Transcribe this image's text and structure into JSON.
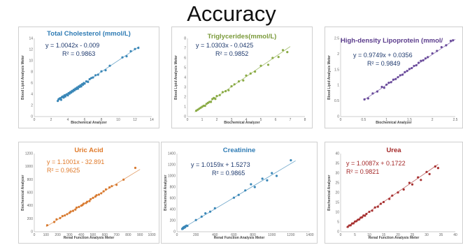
{
  "title": "Accuracy",
  "chart_data": [
    {
      "type": "scatter",
      "title": "Total Cholesterol (mmol/L)",
      "title_color": "#2e7bb4",
      "point_color": "#3a87b7",
      "equation": "y = 1.0042x - 0.009",
      "r2": "R² = 0.9863",
      "xlabel": "Biochemical Analyzer",
      "ylabel": "Blood Lipid Analysis Meter",
      "xlim": [
        0,
        14
      ],
      "ylim": [
        0,
        14
      ],
      "xticks": [
        0,
        2,
        4,
        6,
        8,
        10,
        12,
        14
      ],
      "yticks": [
        0,
        2,
        4,
        6,
        8,
        10,
        12,
        14
      ],
      "trend": {
        "slope": 1.0042,
        "intercept": -0.009,
        "x": [
          2.7,
          12.5
        ]
      },
      "points": [
        [
          2.8,
          2.8
        ],
        [
          2.9,
          3.1
        ],
        [
          3.0,
          3.2
        ],
        [
          3.1,
          3.3
        ],
        [
          3.2,
          3.0
        ],
        [
          3.3,
          3.5
        ],
        [
          3.4,
          3.6
        ],
        [
          3.5,
          3.4
        ],
        [
          3.6,
          3.8
        ],
        [
          3.7,
          3.6
        ],
        [
          3.8,
          3.9
        ],
        [
          3.9,
          4.0
        ],
        [
          4.0,
          3.8
        ],
        [
          4.1,
          4.2
        ],
        [
          4.2,
          4.1
        ],
        [
          4.3,
          4.4
        ],
        [
          4.4,
          4.3
        ],
        [
          4.5,
          4.6
        ],
        [
          4.6,
          4.5
        ],
        [
          4.7,
          4.8
        ],
        [
          4.8,
          4.7
        ],
        [
          4.9,
          5.0
        ],
        [
          5.0,
          4.9
        ],
        [
          5.1,
          5.2
        ],
        [
          5.2,
          5.0
        ],
        [
          5.3,
          5.4
        ],
        [
          5.4,
          5.3
        ],
        [
          5.5,
          5.6
        ],
        [
          5.6,
          5.4
        ],
        [
          5.7,
          5.8
        ],
        [
          5.8,
          5.7
        ],
        [
          5.9,
          6.0
        ],
        [
          6.0,
          5.9
        ],
        [
          6.2,
          6.3
        ],
        [
          6.4,
          6.2
        ],
        [
          6.6,
          6.7
        ],
        [
          6.8,
          6.9
        ],
        [
          7.0,
          7.0
        ],
        [
          7.3,
          7.4
        ],
        [
          7.6,
          7.5
        ],
        [
          8.0,
          8.1
        ],
        [
          8.5,
          8.3
        ],
        [
          9.0,
          9.1
        ],
        [
          10.5,
          10.6
        ],
        [
          11.0,
          10.8
        ],
        [
          11.5,
          11.7
        ],
        [
          12.0,
          12.1
        ],
        [
          12.4,
          12.3
        ]
      ]
    },
    {
      "type": "scatter",
      "title": "Triglycerides(mmol/L)",
      "title_color": "#7a9a3a",
      "point_color": "#8aab45",
      "equation": "y = 1.0303x - 0.0425",
      "r2": "R² = 0.9852",
      "xlabel": "Biochemical Analyzer",
      "ylabel": "Blood Lipid Analysis Meter",
      "xlim": [
        0,
        8
      ],
      "ylim": [
        0,
        8
      ],
      "xticks": [
        0,
        1,
        2,
        3,
        4,
        5,
        6,
        7,
        8
      ],
      "yticks": [
        0,
        1,
        2,
        3,
        4,
        5,
        6,
        7,
        8
      ],
      "trend": {
        "slope": 1.0303,
        "intercept": -0.0425,
        "x": [
          0.5,
          7.0
        ]
      },
      "points": [
        [
          0.6,
          0.6
        ],
        [
          0.7,
          0.7
        ],
        [
          0.8,
          0.8
        ],
        [
          0.9,
          0.9
        ],
        [
          1.0,
          1.0
        ],
        [
          1.1,
          1.1
        ],
        [
          1.2,
          1.1
        ],
        [
          1.3,
          1.3
        ],
        [
          1.4,
          1.4
        ],
        [
          1.5,
          1.5
        ],
        [
          1.6,
          1.5
        ],
        [
          1.7,
          1.8
        ],
        [
          1.8,
          1.9
        ],
        [
          1.9,
          1.8
        ],
        [
          2.0,
          2.1
        ],
        [
          2.2,
          2.2
        ],
        [
          2.4,
          2.5
        ],
        [
          2.6,
          2.6
        ],
        [
          2.8,
          2.7
        ],
        [
          3.0,
          3.1
        ],
        [
          3.2,
          3.3
        ],
        [
          3.5,
          3.6
        ],
        [
          3.8,
          3.7
        ],
        [
          4.0,
          4.2
        ],
        [
          4.3,
          4.4
        ],
        [
          4.6,
          4.6
        ],
        [
          5.0,
          5.2
        ],
        [
          5.5,
          5.3
        ],
        [
          5.8,
          6.0
        ],
        [
          6.2,
          6.1
        ],
        [
          6.5,
          6.8
        ],
        [
          6.8,
          6.6
        ]
      ]
    },
    {
      "type": "scatter",
      "title": "High-density Lipoprotein (mmol/",
      "title_color": "#5b3c8c",
      "point_color": "#6a4b9b",
      "equation": "y = 0.9749x + 0.0356",
      "r2": "R² = 0.9849",
      "xlabel": "Biochemical Analyzer",
      "ylabel": "Blood Lipid Analysis Meter",
      "xlim": [
        0,
        2.5
      ],
      "ylim": [
        0,
        2.5
      ],
      "xticks": [
        0,
        0.5,
        1,
        1.5,
        2,
        2.5
      ],
      "yticks": [
        0,
        0.5,
        1,
        1.5,
        2,
        2.5
      ],
      "trend": {
        "slope": 0.9749,
        "intercept": 0.0356,
        "x": [
          0.5,
          2.5
        ]
      },
      "points": [
        [
          0.52,
          0.55
        ],
        [
          0.6,
          0.58
        ],
        [
          0.7,
          0.74
        ],
        [
          0.8,
          0.8
        ],
        [
          0.9,
          0.95
        ],
        [
          0.95,
          0.92
        ],
        [
          1.0,
          1.02
        ],
        [
          1.05,
          1.08
        ],
        [
          1.1,
          1.1
        ],
        [
          1.15,
          1.18
        ],
        [
          1.2,
          1.2
        ],
        [
          1.25,
          1.26
        ],
        [
          1.3,
          1.32
        ],
        [
          1.35,
          1.34
        ],
        [
          1.4,
          1.42
        ],
        [
          1.45,
          1.46
        ],
        [
          1.5,
          1.52
        ],
        [
          1.55,
          1.55
        ],
        [
          1.6,
          1.62
        ],
        [
          1.65,
          1.64
        ],
        [
          1.7,
          1.72
        ],
        [
          1.75,
          1.78
        ],
        [
          1.8,
          1.8
        ],
        [
          1.85,
          1.86
        ],
        [
          1.9,
          1.9
        ],
        [
          2.0,
          2.02
        ],
        [
          2.1,
          2.1
        ],
        [
          2.2,
          2.22
        ],
        [
          2.3,
          2.28
        ],
        [
          2.4,
          2.42
        ],
        [
          2.45,
          2.44
        ]
      ]
    },
    {
      "type": "scatter",
      "title": "Uric Acid",
      "title_color": "#e07a2a",
      "point_color": "#d87a30",
      "equation": "y = 1.1001x - 32.891",
      "r2": "R² = 0.9625",
      "xlabel": "Renal Function Analysis Meter",
      "ylabel": "Biochemical Analyzer",
      "xlim": [
        0,
        1000
      ],
      "ylim": [
        0,
        1200
      ],
      "xticks": [
        0,
        100,
        200,
        300,
        400,
        500,
        600,
        700,
        800,
        900,
        1000
      ],
      "yticks": [
        0,
        200,
        400,
        600,
        800,
        1000,
        1200
      ],
      "trend": {
        "slope": 1.1001,
        "intercept": -32.891,
        "x": [
          100,
          900
        ]
      },
      "points": [
        [
          110,
          100
        ],
        [
          170,
          150
        ],
        [
          190,
          190
        ],
        [
          220,
          210
        ],
        [
          240,
          240
        ],
        [
          260,
          250
        ],
        [
          280,
          270
        ],
        [
          300,
          290
        ],
        [
          310,
          310
        ],
        [
          330,
          320
        ],
        [
          350,
          340
        ],
        [
          360,
          370
        ],
        [
          380,
          380
        ],
        [
          400,
          400
        ],
        [
          410,
          410
        ],
        [
          420,
          430
        ],
        [
          440,
          440
        ],
        [
          450,
          460
        ],
        [
          470,
          470
        ],
        [
          480,
          500
        ],
        [
          500,
          520
        ],
        [
          520,
          540
        ],
        [
          530,
          560
        ],
        [
          550,
          570
        ],
        [
          570,
          590
        ],
        [
          590,
          620
        ],
        [
          610,
          650
        ],
        [
          640,
          680
        ],
        [
          660,
          700
        ],
        [
          700,
          720
        ],
        [
          760,
          800
        ],
        [
          860,
          980
        ]
      ]
    },
    {
      "type": "scatter",
      "title": "Creatinine",
      "title_color": "#2e7bb4",
      "point_color": "#3a87b7",
      "equation": "y = 1.0159x + 1.5273",
      "r2": "R² = 0.9865",
      "xlabel": "Renal Function Analysis Meter",
      "ylabel": "Biochemical Analyzer",
      "xlim": [
        0,
        1400
      ],
      "ylim": [
        0,
        1400
      ],
      "xticks": [
        0,
        200,
        400,
        600,
        800,
        1000,
        1200,
        1400
      ],
      "yticks": [
        0,
        200,
        400,
        600,
        800,
        1000,
        1200,
        1400
      ],
      "trend": {
        "slope": 1.0159,
        "intercept": 1.5273,
        "x": [
          50,
          1250
        ]
      },
      "points": [
        [
          55,
          50
        ],
        [
          60,
          60
        ],
        [
          62,
          55
        ],
        [
          65,
          70
        ],
        [
          68,
          65
        ],
        [
          70,
          75
        ],
        [
          72,
          80
        ],
        [
          75,
          70
        ],
        [
          78,
          85
        ],
        [
          80,
          90
        ],
        [
          85,
          80
        ],
        [
          90,
          95
        ],
        [
          95,
          100
        ],
        [
          100,
          110
        ],
        [
          110,
          105
        ],
        [
          200,
          210
        ],
        [
          260,
          270
        ],
        [
          300,
          330
        ],
        [
          350,
          360
        ],
        [
          400,
          420
        ],
        [
          600,
          610
        ],
        [
          650,
          660
        ],
        [
          720,
          740
        ],
        [
          780,
          850
        ],
        [
          820,
          800
        ],
        [
          900,
          950
        ],
        [
          950,
          920
        ],
        [
          1000,
          1050
        ],
        [
          1050,
          1000
        ],
        [
          1200,
          1280
        ]
      ]
    },
    {
      "type": "scatter",
      "title": "Urea",
      "title_color": "#a42828",
      "point_color": "#a83232",
      "equation": "y = 1.0087x + 0.1722",
      "r2": "R² = 0.9821",
      "xlabel": "Renal Function Analysis Meter",
      "ylabel": "Biochemical Analyzer",
      "xlim": [
        0,
        40
      ],
      "ylim": [
        0,
        40
      ],
      "xticks": [
        0,
        5,
        10,
        15,
        20,
        25,
        30,
        35,
        40
      ],
      "yticks": [
        0,
        5,
        10,
        15,
        20,
        25,
        30,
        35,
        40
      ],
      "trend": {
        "slope": 1.0087,
        "intercept": 0.1722,
        "x": [
          2,
          34
        ]
      },
      "points": [
        [
          2.5,
          2.5
        ],
        [
          3,
          3.2
        ],
        [
          3.5,
          3.3
        ],
        [
          4,
          4.2
        ],
        [
          4.5,
          4.3
        ],
        [
          5,
          5.2
        ],
        [
          5.5,
          5.4
        ],
        [
          6,
          6.1
        ],
        [
          6.5,
          6.3
        ],
        [
          7,
          7.2
        ],
        [
          7.5,
          7.4
        ],
        [
          8,
          8.3
        ],
        [
          8.5,
          8.2
        ],
        [
          9,
          9.1
        ],
        [
          10,
          10.2
        ],
        [
          11,
          10.8
        ],
        [
          12,
          12.4
        ],
        [
          13,
          12.8
        ],
        [
          14,
          14.3
        ],
        [
          15,
          15.2
        ],
        [
          17,
          16.8
        ],
        [
          18,
          18.5
        ],
        [
          20,
          20.1
        ],
        [
          22,
          21.6
        ],
        [
          24,
          25.0
        ],
        [
          25,
          24.2
        ],
        [
          27,
          27.8
        ],
        [
          28,
          26.5
        ],
        [
          30,
          30.6
        ],
        [
          31,
          29.5
        ],
        [
          33,
          33.4
        ],
        [
          34,
          32.6
        ]
      ]
    }
  ]
}
